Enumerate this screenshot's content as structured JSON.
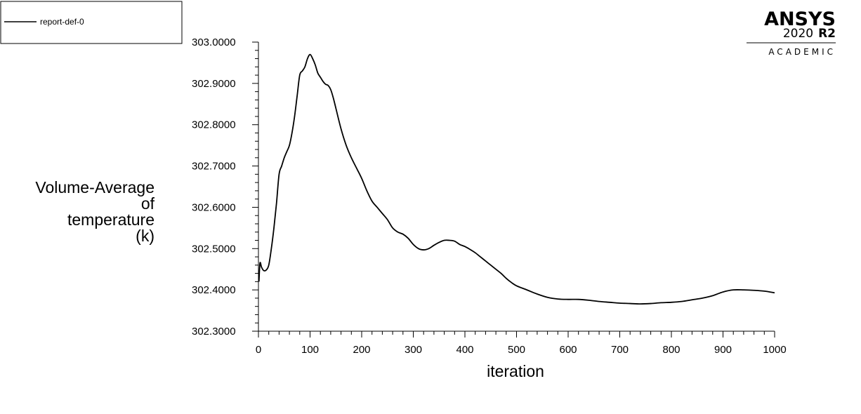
{
  "legend": {
    "entries": [
      "report-def-0"
    ],
    "placement": "top-left"
  },
  "branding": {
    "name": "ANSYS",
    "version": "2020",
    "release": "R2",
    "edition": "ACADEMIC"
  },
  "colors": {
    "line": "#000000",
    "background": "#ffffff"
  },
  "chart_data": {
    "type": "line",
    "title": "",
    "xlabel": "iteration",
    "ylabel_lines": [
      "Volume-Average",
      "of",
      "temperature",
      "(k)"
    ],
    "xlim": [
      0,
      1000
    ],
    "ylim": [
      302.3,
      303.0
    ],
    "xticks": [
      0,
      100,
      200,
      300,
      400,
      500,
      600,
      700,
      800,
      900,
      1000
    ],
    "yticks": [
      "303.0000",
      "302.9000",
      "302.8000",
      "302.7000",
      "302.6000",
      "302.5000",
      "302.4000",
      "302.3000"
    ],
    "grid": false,
    "series": [
      {
        "name": "report-def-0",
        "x": [
          1,
          3,
          6,
          10,
          15,
          20,
          25,
          30,
          35,
          40,
          45,
          50,
          55,
          60,
          65,
          70,
          75,
          80,
          85,
          90,
          95,
          100,
          105,
          110,
          115,
          120,
          125,
          130,
          135,
          140,
          145,
          150,
          160,
          170,
          180,
          190,
          200,
          210,
          220,
          230,
          240,
          250,
          260,
          270,
          280,
          290,
          300,
          310,
          320,
          330,
          340,
          350,
          360,
          370,
          380,
          390,
          400,
          410,
          420,
          430,
          440,
          450,
          460,
          470,
          480,
          490,
          500,
          520,
          540,
          560,
          580,
          600,
          620,
          640,
          660,
          680,
          700,
          720,
          740,
          760,
          780,
          800,
          820,
          840,
          860,
          880,
          900,
          920,
          940,
          960,
          980,
          1000
        ],
        "y": [
          302.42,
          302.465,
          302.455,
          302.447,
          302.448,
          302.46,
          302.5,
          302.55,
          302.61,
          302.68,
          302.7,
          302.72,
          302.735,
          302.75,
          302.78,
          302.82,
          302.87,
          302.92,
          302.93,
          302.94,
          302.96,
          302.97,
          302.96,
          302.945,
          302.925,
          302.915,
          302.905,
          302.898,
          302.895,
          302.885,
          302.865,
          302.84,
          302.79,
          302.75,
          302.72,
          302.695,
          302.67,
          302.64,
          302.615,
          302.6,
          302.585,
          302.57,
          302.55,
          302.54,
          302.535,
          302.525,
          302.51,
          302.5,
          302.497,
          302.5,
          302.508,
          302.515,
          302.52,
          302.52,
          302.518,
          302.51,
          302.505,
          302.498,
          302.49,
          302.48,
          302.47,
          302.46,
          302.45,
          302.44,
          302.428,
          302.418,
          302.41,
          302.4,
          302.39,
          302.382,
          302.378,
          302.377,
          302.377,
          302.375,
          302.372,
          302.37,
          302.368,
          302.367,
          302.366,
          302.367,
          302.369,
          302.37,
          302.372,
          302.376,
          302.38,
          302.386,
          302.395,
          302.4,
          302.4,
          302.399,
          302.397,
          302.393
        ]
      }
    ]
  }
}
